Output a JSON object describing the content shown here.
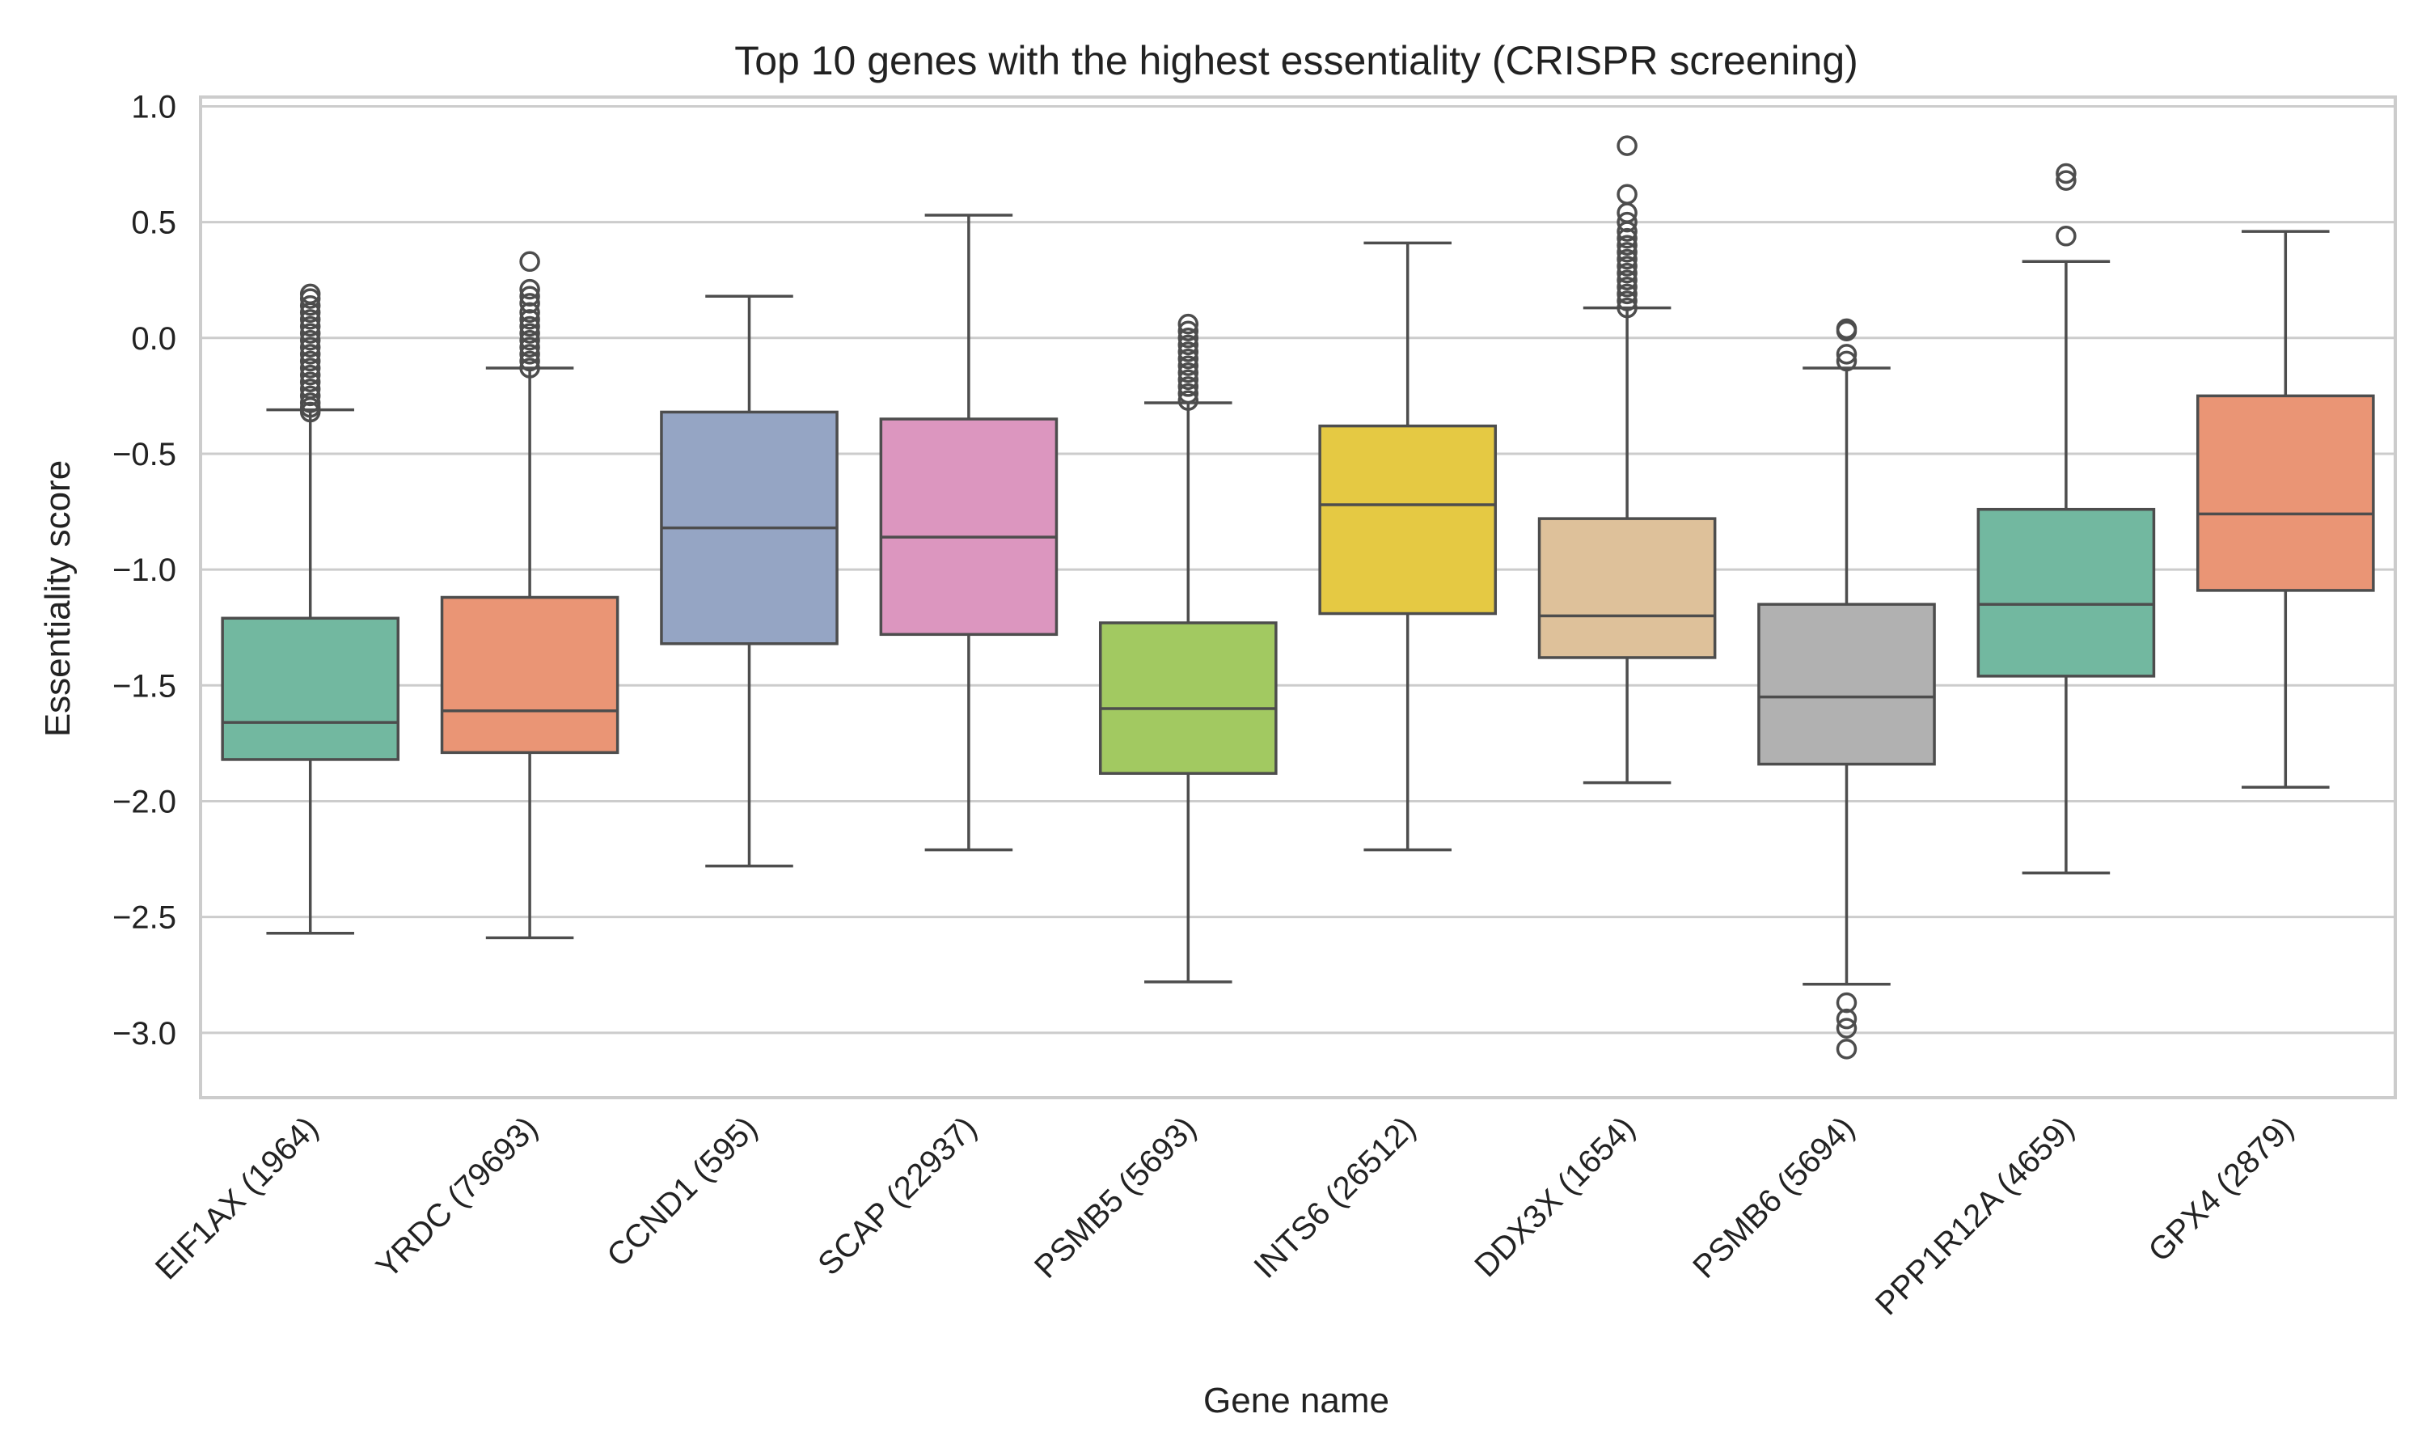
{
  "chart_data": {
    "type": "box",
    "title": "Top 10 genes with the highest essentiality (CRISPR screening)",
    "xlabel": "Gene name",
    "ylabel": "Essentiality score",
    "ylim": [
      -3.28,
      1.04
    ],
    "yticks": [
      1.0,
      0.5,
      0.0,
      -0.5,
      -1.0,
      -1.5,
      -2.0,
      -2.5,
      -3.0
    ],
    "ytick_labels": [
      "1.0",
      "0.5",
      "0.0",
      "−0.5",
      "−1.0",
      "−1.5",
      "−2.0",
      "−2.5",
      "−3.0"
    ],
    "grid": true,
    "categories": [
      {
        "label": "EIF1AX (1964)",
        "color": "#72b8a0",
        "whisker_low": -2.57,
        "q1": -1.82,
        "median": -1.66,
        "q3": -1.21,
        "whisker_high": -0.31,
        "outliers": [
          -0.32,
          -0.3,
          -0.28,
          -0.25,
          -0.22,
          -0.19,
          -0.16,
          -0.13,
          -0.1,
          -0.07,
          -0.04,
          -0.01,
          0.02,
          0.05,
          0.08,
          0.11,
          0.14,
          0.17,
          0.19
        ]
      },
      {
        "label": "YRDC (79693)",
        "color": "#ea9575",
        "whisker_low": -2.59,
        "q1": -1.79,
        "median": -1.61,
        "q3": -1.12,
        "whisker_high": -0.13,
        "outliers": [
          -0.13,
          -0.1,
          -0.07,
          -0.04,
          -0.01,
          0.02,
          0.05,
          0.08,
          0.11,
          0.15,
          0.18,
          0.21,
          0.33
        ]
      },
      {
        "label": "CCND1 (595)",
        "color": "#95a5c4",
        "whisker_low": -2.28,
        "q1": -1.32,
        "median": -0.82,
        "q3": -0.32,
        "whisker_high": 0.18,
        "outliers": []
      },
      {
        "label": "SCAP (22937)",
        "color": "#dc96bf",
        "whisker_low": -2.21,
        "q1": -1.28,
        "median": -0.86,
        "q3": -0.35,
        "whisker_high": 0.53,
        "outliers": []
      },
      {
        "label": "PSMB5 (5693)",
        "color": "#a2c961",
        "whisker_low": -2.78,
        "q1": -1.88,
        "median": -1.6,
        "q3": -1.23,
        "whisker_high": -0.28,
        "outliers": [
          -0.27,
          -0.24,
          -0.21,
          -0.18,
          -0.15,
          -0.12,
          -0.09,
          -0.06,
          -0.03,
          0.0,
          0.03,
          0.06
        ]
      },
      {
        "label": "INTS6 (26512)",
        "color": "#e5c943",
        "whisker_low": -2.21,
        "q1": -1.19,
        "median": -0.72,
        "q3": -0.38,
        "whisker_high": 0.41,
        "outliers": []
      },
      {
        "label": "DDX3X (1654)",
        "color": "#dec19a",
        "whisker_low": -1.92,
        "q1": -1.38,
        "median": -1.2,
        "q3": -0.78,
        "whisker_high": 0.13,
        "outliers": [
          0.13,
          0.16,
          0.19,
          0.22,
          0.25,
          0.28,
          0.31,
          0.34,
          0.37,
          0.4,
          0.43,
          0.46,
          0.5,
          0.54,
          0.62,
          0.83
        ]
      },
      {
        "label": "PSMB6 (5694)",
        "color": "#b1b1b1",
        "whisker_low": -2.79,
        "q1": -1.84,
        "median": -1.55,
        "q3": -1.15,
        "whisker_high": -0.13,
        "outliers": [
          -0.1,
          -0.07,
          0.03,
          0.04,
          -2.87,
          -2.94,
          -2.98,
          -3.07
        ]
      },
      {
        "label": "PPP1R12A (4659)",
        "color": "#72b8a0",
        "whisker_low": -2.31,
        "q1": -1.46,
        "median": -1.15,
        "q3": -0.74,
        "whisker_high": 0.33,
        "outliers": [
          0.44,
          0.68,
          0.71
        ]
      },
      {
        "label": "GPX4 (2879)",
        "color": "#ea9575",
        "whisker_low": -1.94,
        "q1": -1.09,
        "median": -0.76,
        "q3": -0.25,
        "whisker_high": 0.46,
        "outliers": []
      }
    ]
  }
}
